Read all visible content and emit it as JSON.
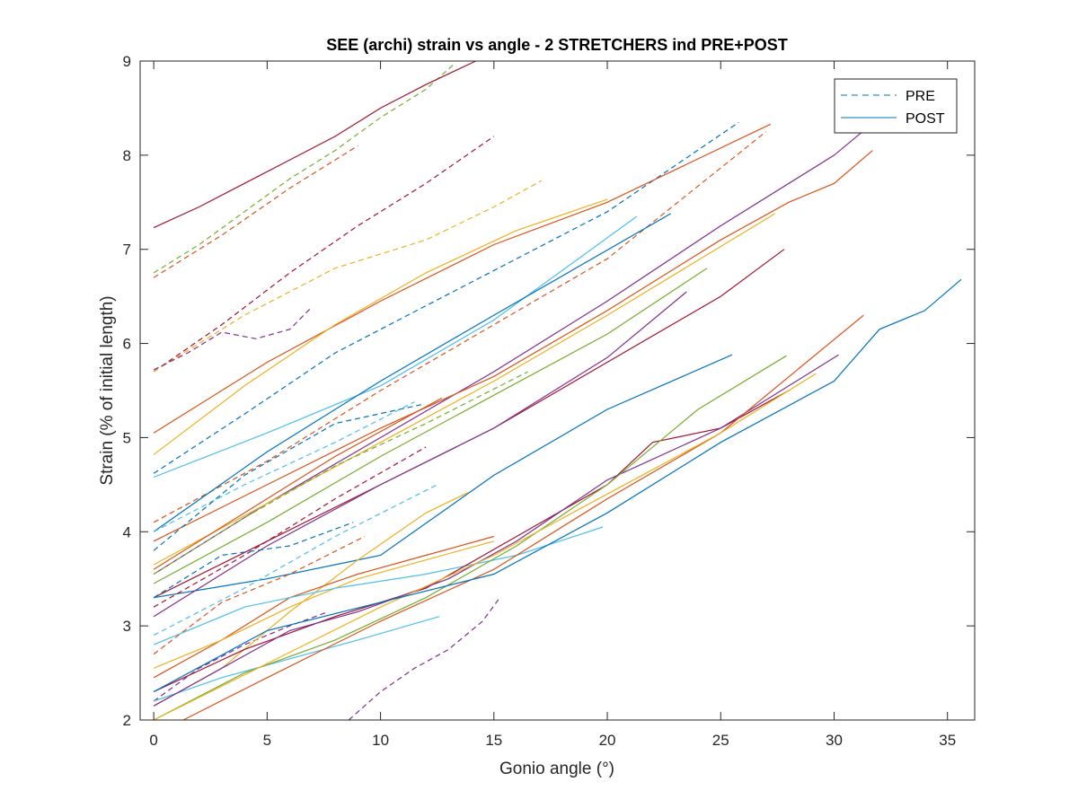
{
  "chart_data": {
    "type": "line",
    "title": "SEE (archi) strain vs angle - 2 STRETCHERS ind PRE+POST",
    "xlabel": "Gonio angle (°)",
    "ylabel": "Strain (% of initial length)",
    "xlim": [
      -0.6,
      36.2
    ],
    "ylim": [
      2,
      9
    ],
    "xticks": [
      0,
      5,
      10,
      15,
      20,
      25,
      30,
      35
    ],
    "yticks": [
      2,
      3,
      4,
      5,
      6,
      7,
      8,
      9
    ],
    "grid": false,
    "legend": {
      "position": "top-right",
      "entries": [
        "PRE",
        "POST"
      ]
    },
    "legend_styles": {
      "PRE": "dashed",
      "POST": "solid"
    },
    "palette": [
      "#0072BD",
      "#D95319",
      "#EDB120",
      "#7E2F8E",
      "#77AC30",
      "#4DBEEE",
      "#A2142F"
    ],
    "series": [
      {
        "style": "dashed",
        "color": "#77AC30",
        "x": [
          0,
          2,
          4,
          6,
          8,
          10,
          12,
          13.3
        ],
        "y": [
          6.75,
          7.05,
          7.4,
          7.75,
          8.05,
          8.4,
          8.7,
          8.98
        ]
      },
      {
        "style": "dashed",
        "color": "#D95319",
        "x": [
          0,
          3,
          6,
          9
        ],
        "y": [
          6.7,
          7.15,
          7.65,
          8.1
        ]
      },
      {
        "style": "solid",
        "color": "#A2142F",
        "x": [
          0,
          2,
          4,
          6,
          8,
          10,
          12,
          14.2
        ],
        "y": [
          7.23,
          7.45,
          7.7,
          7.95,
          8.2,
          8.5,
          8.75,
          9
        ]
      },
      {
        "style": "dashed",
        "color": "#A2142F",
        "x": [
          0,
          3,
          6,
          9,
          12,
          15
        ],
        "y": [
          5.7,
          6.2,
          6.75,
          7.25,
          7.7,
          8.2
        ]
      },
      {
        "style": "dashed",
        "color": "#EDB120",
        "x": [
          0,
          4,
          8,
          12,
          15,
          17.1
        ],
        "y": [
          5.7,
          6.3,
          6.8,
          7.1,
          7.45,
          7.73
        ]
      },
      {
        "style": "dashed",
        "color": "#7E2F8E",
        "x": [
          0,
          1.5,
          3,
          4.5,
          6,
          6.9
        ],
        "y": [
          5.72,
          5.9,
          6.12,
          6.05,
          6.15,
          6.37
        ]
      },
      {
        "style": "dashed",
        "color": "#0072BD",
        "x": [
          0,
          4,
          8,
          12,
          16,
          20,
          25.8
        ],
        "y": [
          4.62,
          5.25,
          5.9,
          6.4,
          6.9,
          7.4,
          8.35
        ]
      },
      {
        "style": "dashed",
        "color": "#D95319",
        "x": [
          0,
          5,
          10,
          15,
          20,
          27
        ],
        "y": [
          4.1,
          4.75,
          5.5,
          6.2,
          6.9,
          8.25
        ]
      },
      {
        "style": "solid",
        "color": "#D95319",
        "x": [
          0,
          5,
          10,
          15,
          20,
          27.2
        ],
        "y": [
          5.05,
          5.8,
          6.45,
          7.05,
          7.5,
          8.33
        ]
      },
      {
        "style": "solid",
        "color": "#EDB120",
        "x": [
          0,
          4,
          8,
          12,
          16,
          20
        ],
        "y": [
          4.82,
          5.55,
          6.2,
          6.75,
          7.2,
          7.53
        ]
      },
      {
        "style": "solid",
        "color": "#4DBEEE",
        "x": [
          0,
          5,
          10,
          15,
          21.3
        ],
        "y": [
          4.58,
          5.05,
          5.55,
          6.25,
          7.35
        ]
      },
      {
        "style": "solid",
        "color": "#0072BD",
        "x": [
          0,
          5,
          10,
          15,
          22.8
        ],
        "y": [
          4.0,
          4.85,
          5.6,
          6.3,
          7.38
        ]
      },
      {
        "style": "solid",
        "color": "#7E2F8E",
        "x": [
          0,
          5,
          10,
          15,
          20,
          25,
          30,
          31.5
        ],
        "y": [
          3.55,
          4.3,
          5.0,
          5.7,
          6.45,
          7.25,
          8.0,
          8.3
        ]
      },
      {
        "style": "solid",
        "color": "#D95319",
        "x": [
          0,
          5,
          10,
          15,
          20,
          25,
          28,
          30,
          31.7
        ],
        "y": [
          3.9,
          4.5,
          5.1,
          5.65,
          6.35,
          7.1,
          7.5,
          7.7,
          8.05
        ]
      },
      {
        "style": "solid",
        "color": "#EDB120",
        "x": [
          0,
          5,
          10,
          15,
          20,
          27.4
        ],
        "y": [
          3.65,
          4.3,
          4.95,
          5.6,
          6.3,
          7.38
        ]
      },
      {
        "style": "solid",
        "color": "#A2142F",
        "x": [
          0,
          5,
          10,
          15,
          20,
          25,
          27.8
        ],
        "y": [
          3.3,
          3.9,
          4.5,
          5.1,
          5.8,
          6.5,
          7.0
        ]
      },
      {
        "style": "solid",
        "color": "#77AC30",
        "x": [
          0,
          5,
          10,
          15,
          20,
          24.4
        ],
        "y": [
          3.45,
          4.1,
          4.8,
          5.45,
          6.1,
          6.8
        ]
      },
      {
        "style": "solid",
        "color": "#0072BD",
        "x": [
          0,
          5,
          10,
          15,
          20,
          25.5
        ],
        "y": [
          3.3,
          3.5,
          3.75,
          4.6,
          5.3,
          5.88
        ]
      },
      {
        "style": "solid",
        "color": "#7E2F8E",
        "x": [
          0,
          5,
          10,
          15,
          20,
          23.5
        ],
        "y": [
          3.1,
          3.85,
          4.5,
          5.1,
          5.85,
          6.55
        ]
      },
      {
        "style": "solid",
        "color": "#D95319",
        "x": [
          0,
          4,
          8,
          12.7
        ],
        "y": [
          3.6,
          4.2,
          4.8,
          5.42
        ]
      },
      {
        "style": "dashed",
        "color": "#4DBEEE",
        "x": [
          0,
          4,
          8,
          11.5
        ],
        "y": [
          4.0,
          4.5,
          4.95,
          5.38
        ]
      },
      {
        "style": "dashed",
        "color": "#0072BD",
        "x": [
          0,
          4,
          8,
          11.8
        ],
        "y": [
          3.8,
          4.6,
          5.15,
          5.35
        ]
      },
      {
        "style": "dashed",
        "color": "#77AC30",
        "x": [
          0,
          4,
          8,
          12,
          16.5
        ],
        "y": [
          3.55,
          4.15,
          4.7,
          5.15,
          5.7
        ]
      },
      {
        "style": "dashed",
        "color": "#A2142F",
        "x": [
          0,
          4,
          8,
          12
        ],
        "y": [
          3.2,
          3.75,
          4.35,
          4.9
        ]
      },
      {
        "style": "dashed",
        "color": "#4DBEEE",
        "x": [
          0,
          4,
          8,
          12.5
        ],
        "y": [
          2.9,
          3.4,
          3.95,
          4.5
        ]
      },
      {
        "style": "dashed",
        "color": "#D95319",
        "x": [
          0,
          3,
          6,
          9.3
        ],
        "y": [
          2.7,
          3.25,
          3.55,
          3.95
        ]
      },
      {
        "style": "dashed",
        "color": "#0072BD",
        "x": [
          0,
          3,
          6,
          8.8
        ],
        "y": [
          3.3,
          3.75,
          3.85,
          4.1
        ]
      },
      {
        "style": "dashed",
        "color": "#7E2F8E",
        "x": [
          0,
          2,
          4,
          6,
          7.7
        ],
        "y": [
          2.2,
          2.55,
          2.8,
          3.0,
          3.15
        ]
      },
      {
        "style": "dashed",
        "color": "#7E2F8E",
        "x": [
          8.6,
          10,
          11.5,
          13,
          14.5,
          15.2
        ],
        "y": [
          2.0,
          2.3,
          2.55,
          2.75,
          3.05,
          3.28
        ]
      },
      {
        "style": "solid",
        "color": "#EDB120",
        "x": [
          0,
          3,
          6,
          9,
          12,
          13.9
        ],
        "y": [
          2.15,
          2.55,
          3.15,
          3.7,
          4.2,
          4.42
        ]
      },
      {
        "style": "solid",
        "color": "#D95319",
        "x": [
          0,
          3,
          6,
          9,
          12,
          15
        ],
        "y": [
          2.45,
          2.85,
          3.3,
          3.55,
          3.75,
          3.95
        ]
      },
      {
        "style": "solid",
        "color": "#EDB120",
        "x": [
          0,
          3,
          6,
          9,
          12,
          15
        ],
        "y": [
          2.55,
          2.85,
          3.2,
          3.5,
          3.7,
          3.9
        ]
      },
      {
        "style": "solid",
        "color": "#4DBEEE",
        "x": [
          0,
          4,
          8,
          12,
          16,
          19.8
        ],
        "y": [
          2.8,
          3.2,
          3.4,
          3.55,
          3.75,
          4.05
        ]
      },
      {
        "style": "solid",
        "color": "#4DBEEE",
        "x": [
          0,
          3,
          6,
          9,
          12.6
        ],
        "y": [
          2.2,
          2.45,
          2.65,
          2.85,
          3.1
        ]
      },
      {
        "style": "solid",
        "color": "#A2142F",
        "x": [
          0,
          4,
          8,
          12,
          16,
          20,
          22,
          25,
          28
        ],
        "y": [
          2.3,
          2.75,
          3.1,
          3.4,
          3.95,
          4.5,
          4.95,
          5.1,
          5.5
        ]
      },
      {
        "style": "solid",
        "color": "#7E2F8E",
        "x": [
          0,
          3,
          6,
          9,
          13,
          16,
          20,
          25,
          30.2
        ],
        "y": [
          2.15,
          2.55,
          2.95,
          3.15,
          3.5,
          3.9,
          4.55,
          5.1,
          5.88
        ]
      },
      {
        "style": "solid",
        "color": "#77AC30",
        "x": [
          0,
          4,
          8,
          12,
          16,
          20,
          24,
          27.9
        ],
        "y": [
          2.0,
          2.5,
          2.85,
          3.3,
          3.85,
          4.5,
          5.3,
          5.87
        ]
      },
      {
        "style": "solid",
        "color": "#D95319",
        "x": [
          1.3,
          5,
          10,
          15,
          20,
          25,
          31.3
        ],
        "y": [
          2.0,
          2.45,
          3.05,
          3.6,
          4.35,
          5.05,
          6.3
        ]
      },
      {
        "style": "solid",
        "color": "#EDB120",
        "x": [
          0,
          5,
          10,
          15,
          20,
          25,
          29.2
        ],
        "y": [
          2.0,
          2.6,
          3.2,
          3.75,
          4.4,
          5.05,
          5.68
        ]
      },
      {
        "style": "solid",
        "color": "#0072BD",
        "x": [
          0,
          5,
          10,
          15,
          20,
          25,
          30,
          32,
          34,
          35.6
        ],
        "y": [
          2.3,
          2.95,
          3.25,
          3.55,
          4.2,
          4.95,
          5.6,
          6.15,
          6.35,
          6.68
        ]
      }
    ]
  }
}
